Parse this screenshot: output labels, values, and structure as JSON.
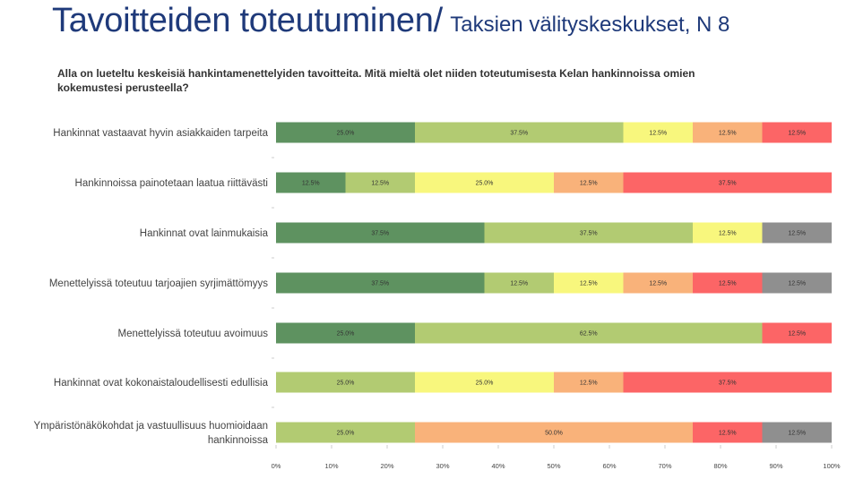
{
  "header": {
    "title": "Tavoitteiden toteutuminen/",
    "subtitle": "Taksien välityskeskukset, N 8"
  },
  "question": "Alla on lueteltu keskeisiä hankintamenettelyiden tavoitteita. Mitä mieltä olet niiden toteutumisesta Kelan hankinnoissa omien kokemustesi perusteella?",
  "colors": {
    "level1": "#5e9260",
    "level2": "#b2cb72",
    "level3": "#f8f77d",
    "level4": "#f9b27a",
    "level5": "#fc6566",
    "level6": "#8f8f8f"
  },
  "chart_data": {
    "type": "bar",
    "orientation": "horizontal",
    "stacked": true,
    "xlim": [
      0,
      100
    ],
    "x_ticks": [
      "0%",
      "10%",
      "20%",
      "30%",
      "40%",
      "50%",
      "60%",
      "70%",
      "80%",
      "90%",
      "100%"
    ],
    "categories": [
      [
        "Hankinnat vastaavat hyvin asiakkaiden tarpeita"
      ],
      [
        "Hankinnoissa painotetaan laatua riittävästi"
      ],
      [
        "Hankinnat ovat lainmukaisia"
      ],
      [
        "Menettelyissä toteutuu tarjoajien syrjimättömyys"
      ],
      [
        "Menettelyissä toteutuu avoimuus"
      ],
      [
        "Hankinnat ovat kokonaistaloudellisesti edullisia"
      ],
      [
        "Ympäristönäkökohdat ja vastuullisuus huomioidaan",
        "hankinnoissa"
      ]
    ],
    "series": [
      {
        "color_key": "level1",
        "values": [
          25.0,
          12.5,
          37.5,
          37.5,
          25.0,
          0,
          0
        ]
      },
      {
        "color_key": "level2",
        "values": [
          37.5,
          12.5,
          37.5,
          12.5,
          62.5,
          25.0,
          25.0
        ]
      },
      {
        "color_key": "level3",
        "values": [
          12.5,
          25.0,
          12.5,
          12.5,
          0,
          25.0,
          0
        ]
      },
      {
        "color_key": "level4",
        "values": [
          12.5,
          12.5,
          0,
          12.5,
          0,
          12.5,
          50.0
        ]
      },
      {
        "color_key": "level5",
        "values": [
          12.5,
          37.5,
          0,
          12.5,
          12.5,
          37.5,
          12.5
        ]
      },
      {
        "color_key": "level6",
        "values": [
          0,
          0,
          12.5,
          12.5,
          0,
          0,
          12.5
        ]
      }
    ]
  }
}
